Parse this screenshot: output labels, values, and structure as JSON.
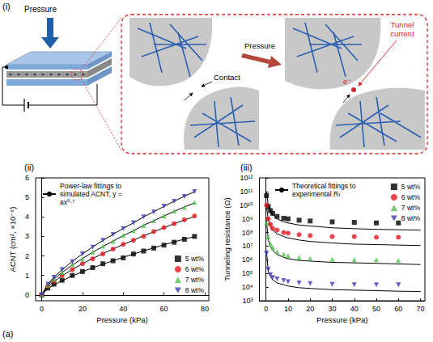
{
  "figure_label": "(a)",
  "diagram": {
    "label": "(i)",
    "load_label": "Pressure",
    "contact_label": "Contact",
    "pressure_label": "Pressure",
    "current_label": "Tunnel current",
    "electron_label": "e⁻"
  },
  "chart_data": [
    {
      "type": "scatter",
      "title": "(ii)",
      "x_label": "Pressure (kPa)",
      "y_label": "ACNT (cm², ×10⁻⁶)",
      "xlim": [
        -3,
        82
      ],
      "xticks": [
        0,
        20,
        40,
        60,
        80
      ],
      "ylim": [
        -0.3,
        6
      ],
      "yticks": [
        0,
        1,
        2,
        3,
        4,
        5,
        6
      ],
      "grid": false,
      "legend": "lower right",
      "x": [
        0,
        3,
        6,
        10,
        15,
        20,
        25,
        30,
        35,
        40,
        45,
        50,
        55,
        60,
        65,
        70,
        75
      ],
      "series": [
        {
          "name": "Power-law fittings to simulated ACNT, y = ax⁰·⁷",
          "type": "line",
          "color": "#000000",
          "line_style": "solid",
          "curves": [
            [
              0,
              0.32,
              0.51,
              0.73,
              0.97,
              1.19,
              1.39,
              1.58,
              1.75,
              1.93,
              2.09,
              2.26,
              2.41,
              2.57,
              2.72,
              2.86,
              2.99
            ],
            [
              0,
              0.42,
              0.69,
              0.98,
              1.3,
              1.6,
              1.87,
              2.12,
              2.35,
              2.59,
              2.8,
              3.04,
              3.23,
              3.45,
              3.65,
              3.84,
              4.02
            ],
            [
              0,
              0.5,
              0.81,
              1.15,
              1.53,
              1.87,
              2.19,
              2.48,
              2.76,
              3.04,
              3.29,
              3.57,
              3.8,
              4.05,
              4.28,
              4.51,
              4.72
            ],
            [
              0,
              0.56,
              0.91,
              1.29,
              1.72,
              2.1,
              2.46,
              2.79,
              3.1,
              3.41,
              3.69,
              4.0,
              4.26,
              4.54,
              4.8,
              5.06,
              5.29
            ]
          ]
        },
        {
          "name": "5 wt%",
          "type": "scatter",
          "color": "#000000",
          "marker": "square",
          "values": [
            0,
            0.35,
            0.55,
            0.75,
            1.0,
            1.2,
            1.4,
            1.6,
            1.75,
            1.9,
            2.1,
            2.25,
            2.4,
            2.55,
            2.7,
            2.85,
            3.0
          ]
        },
        {
          "name": "6 wt%",
          "type": "scatter",
          "color": "#e3161d",
          "marker": "circle",
          "values": [
            0,
            0.45,
            0.7,
            1.0,
            1.3,
            1.6,
            1.85,
            2.1,
            2.35,
            2.6,
            2.8,
            3.0,
            3.25,
            3.45,
            3.65,
            3.85,
            4.05
          ]
        },
        {
          "name": "7 wt%",
          "type": "scatter",
          "color": "#4cc24c",
          "marker": "triangle",
          "values": [
            0,
            0.5,
            0.8,
            1.15,
            1.55,
            1.85,
            2.2,
            2.5,
            2.75,
            3.05,
            3.3,
            3.55,
            3.8,
            4.05,
            4.3,
            4.5,
            4.75
          ]
        },
        {
          "name": "8 wt%",
          "type": "scatter",
          "color": "#3b3bb5",
          "marker": "triangle_down",
          "values": [
            0,
            0.55,
            0.9,
            1.3,
            1.7,
            2.1,
            2.45,
            2.8,
            3.1,
            3.4,
            3.7,
            4.0,
            4.25,
            4.55,
            4.8,
            5.05,
            5.3
          ]
        }
      ]
    },
    {
      "type": "scatter",
      "title": "(iii)",
      "x_label": "Pressure (kPa)",
      "y_label": "Tunneling resistance (Ω)",
      "log": "y",
      "xlim": [
        -3,
        72
      ],
      "xticks": [
        0,
        10,
        20,
        30,
        40,
        50,
        60,
        70
      ],
      "ylim": [
        1000,
        1000000000000
      ],
      "yticks": [
        {
          "value": 1000,
          "label": "10³"
        },
        {
          "value": 10000,
          "label": "10⁴"
        },
        {
          "value": 100000,
          "label": "10⁵"
        },
        {
          "value": 1000000,
          "label": "10⁶"
        },
        {
          "value": 10000000,
          "label": "10⁷"
        },
        {
          "value": 100000000,
          "label": "10⁸"
        },
        {
          "value": 1000000000,
          "label": "10⁹"
        },
        {
          "value": 10000000000,
          "label": "10¹⁰"
        },
        {
          "value": 100000000000,
          "label": "10¹¹"
        },
        {
          "value": 1000000000000,
          "label": "10¹²"
        }
      ],
      "grid": false,
      "legend": "upper right",
      "x": [
        0.2,
        1,
        2,
        3,
        5,
        8,
        10,
        15,
        20,
        30,
        40,
        50,
        60,
        70
      ],
      "series": [
        {
          "name": "Theoretical fittings to experimental Rₜ",
          "type": "line",
          "color": "#000000",
          "line_style": "solid",
          "curves": [
            [
              100000000000,
              10000000000,
              4000000000,
              2000000000,
              1000000000,
              600000000,
              500000000,
              350000000,
              300000000,
              220000000,
              190000000,
              170000000,
              160000000,
              150000000
            ],
            [
              10000000000,
              800000000,
              300000000,
              150000000,
              80000000,
              50000000,
              40000000,
              28000000,
              22000000,
              17000000,
              14000000,
              13000000,
              12000000,
              11000000
            ],
            [
              800000000,
              30000000,
              10000000,
              5000000,
              2500000,
              1500000,
              1200000,
              900000,
              800000,
              650000,
              600000,
              550000,
              500000,
              450000
            ],
            [
              5000000,
              150000,
              60000,
              35000,
              20000,
              15000,
              12000,
              9000,
              8000,
              6500,
              6000,
              5500,
              5000,
              4800
            ]
          ]
        },
        {
          "name": "5 wt%",
          "type": "scatter",
          "color": "#000000",
          "marker": "square",
          "values": [
            50000000000,
            8000000000,
            4000000000,
            2500000000,
            1500000000,
            1100000000,
            1000000000,
            800000000,
            700000000,
            600000000,
            550000000,
            500000000,
            500000000,
            null
          ]
        },
        {
          "name": "6 wt%",
          "type": "scatter",
          "color": "#e3161d",
          "marker": "circle",
          "values": [
            10000000000,
            1000000000,
            400000000,
            200000000,
            150000000,
            100000000,
            90000000,
            70000000,
            60000000,
            50000000,
            50000000,
            45000000,
            45000000,
            null
          ]
        },
        {
          "name": "7 wt%",
          "type": "scatter",
          "color": "#4cc24c",
          "marker": "triangle",
          "values": [
            500000000,
            50000000,
            15000000,
            8000000,
            4000000,
            2500000,
            2000000,
            1500000,
            1300000,
            1100000,
            1000000,
            1000000,
            900000,
            null
          ]
        },
        {
          "name": "8 wt%",
          "type": "scatter",
          "color": "#3b3bb5",
          "marker": "triangle_down",
          "values": [
            3000000,
            200000,
            80000,
            50000,
            40000,
            30000,
            25000,
            20000,
            18000,
            16000,
            15000,
            15000,
            15000,
            null
          ]
        }
      ]
    }
  ]
}
